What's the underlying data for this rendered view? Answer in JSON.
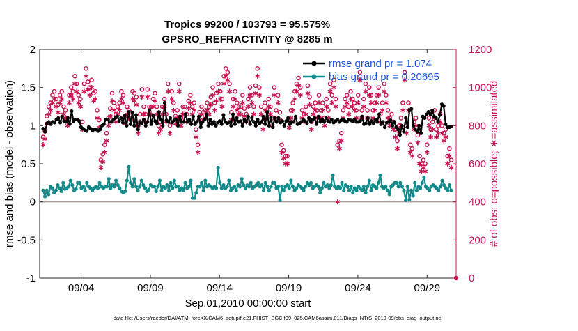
{
  "chart_data": {
    "type": "line",
    "title_line1": "Tropics 99200 / 103793 = 95.575%",
    "title_line2": "GPSRO_REFRACTIVITY @ 8285 m",
    "xlabel": "Sep.01,2010 00:00:00 start",
    "ylabel_left": "rmse and bias (model - observation)",
    "ylabel_right": "# of obs: o=possible; ∗=assimilated",
    "footer": "data file: /Users/raeder/DAI/ATM_forcXX/CAM6_setup/f.e21.FHIST_BGC.f09_025.CAM6assim.011/Diags_NTrS_2010-09/obs_diag_output.nc",
    "xlim": [
      0.5,
      30.6
    ],
    "ylim_left": [
      -1,
      2
    ],
    "ylim_right": [
      0,
      1200
    ],
    "x_ticks": [
      3.5,
      8.5,
      13.5,
      18.5,
      23.5,
      28.5
    ],
    "x_tick_labels": [
      "09/04",
      "09/09",
      "09/14",
      "09/19",
      "09/24",
      "09/29"
    ],
    "y_ticks_left": [
      -1,
      -0.5,
      0,
      0.5,
      1,
      1.5,
      2
    ],
    "y_tick_labels_left": [
      "-1",
      "-0.5",
      "0",
      "0.5",
      "1",
      "1.5",
      "2"
    ],
    "y_ticks_right": [
      0,
      200,
      400,
      600,
      800,
      1000,
      1200
    ],
    "y_tick_labels_right": [
      "0",
      "200",
      "400",
      "600",
      "800",
      "1000",
      "1200"
    ],
    "zero_line": 0,
    "grid": false,
    "legend": {
      "position": "top-right",
      "entries": [
        "rmse grand pr = 1.074",
        "bias grand pr = 0.20695"
      ]
    },
    "colors": {
      "rmse": "#000000",
      "bias": "#138a8a",
      "obs": "#c8154f",
      "zero_line": "#b49a9a",
      "legend_text": "#1a55e0"
    },
    "series": [
      {
        "name": "rmse",
        "axis": "left",
        "values": [
          0.96,
          0.92,
          1.03,
          1.05,
          1.02,
          1.05,
          1.04,
          1.08,
          1.1,
          1.04,
          1.12,
          1.06,
          1.05,
          1.1,
          1.02,
          1.19,
          1.06,
          1.08,
          1.08,
          1.06,
          0.98,
          0.96,
          0.94,
          0.93,
          0.98,
          0.96,
          0.94,
          0.95,
          0.95,
          0.93,
          0.95,
          1.0,
          1.02,
          1.08,
          1.08,
          1.05,
          1.05,
          1.08,
          1.1,
          1.12,
          1.06,
          1.1,
          1.04,
          1.13,
          1.0,
          1.18,
          1.02,
          1.17,
          1.0,
          1.14,
          0.95,
          1.05,
          1.03,
          1.08,
          1.0,
          1.05,
          1.2,
          1.02,
          1.13,
          1.06,
          1.03,
          1.18,
          1.08,
          1.0,
          1.3,
          1.07,
          1.05,
          1.1,
          1.04,
          1.07,
          1.08,
          1.0,
          1.12,
          1.05,
          1.05,
          1.15,
          1.05,
          1.08,
          1.02,
          1.12,
          1.02,
          1.05,
          1.12,
          0.98,
          1.05,
          1.08,
          1.15,
          1.0,
          1.08,
          1.02,
          1.05,
          1.0,
          1.04,
          1.06,
          1.02,
          1.14,
          1.05,
          1.03,
          1.05,
          1.0,
          1.15,
          1.02,
          1.1,
          1.05,
          1.06,
          1.0,
          1.08,
          1.05,
          1.12,
          1.02,
          1.1,
          1.05,
          1.0,
          1.08,
          1.03,
          1.05,
          1.12,
          1.02,
          1.18,
          1.0,
          1.1,
          0.98,
          1.1,
          1.05,
          1.1,
          1.04,
          1.06,
          1.0,
          1.06,
          1.1,
          1.02,
          1.05,
          1.05,
          1.12,
          1.02,
          1.03,
          1.05,
          1.08,
          1.06,
          1.03,
          1.1,
          1.05,
          1.08,
          1.1,
          1.02,
          1.12,
          1.05,
          1.08,
          1.05,
          1.1,
          1.06,
          1.05,
          1.08,
          1.04,
          1.06,
          1.08,
          1.05,
          1.07,
          1.08,
          1.06,
          1.05,
          1.08,
          1.07,
          1.06,
          1.08,
          1.05,
          1.05,
          1.06,
          1.12,
          1.02,
          1.03,
          1.1,
          1.02,
          1.06,
          1.03,
          1.08,
          1.05,
          1.15,
          1.02,
          1.05,
          0.98,
          1.04,
          1.05,
          1.07,
          1.0,
          1.05,
          0.98,
          0.95,
          0.88,
          1.0,
          0.92,
          1.1,
          0.98,
          1.2,
          1.22,
          1.0,
          0.95,
          0.92,
          1.0,
          0.9,
          1.12,
          1.1,
          1.15,
          1.18,
          1.15,
          1.2,
          1.12,
          1.1,
          1.05,
          1.14,
          1.28,
          1.26,
          1.02,
          0.98,
          0.98,
          0.99
        ]
      },
      {
        "name": "bias",
        "axis": "left",
        "values": [
          0.15,
          0.07,
          0.15,
          0.1,
          0.2,
          0.18,
          0.12,
          0.15,
          0.22,
          0.18,
          0.14,
          0.25,
          0.17,
          0.18,
          0.2,
          0.28,
          0.22,
          0.15,
          0.17,
          0.25,
          0.25,
          0.18,
          0.2,
          0.15,
          0.25,
          0.2,
          0.18,
          0.15,
          0.18,
          0.2,
          0.18,
          0.25,
          0.2,
          0.18,
          0.2,
          0.2,
          0.3,
          0.18,
          0.22,
          0.2,
          0.28,
          0.22,
          0.18,
          0.14,
          0.12,
          0.14,
          0.28,
          0.46,
          0.25,
          0.2,
          0.3,
          0.2,
          0.15,
          0.2,
          0.28,
          0.22,
          0.18,
          0.14,
          0.16,
          0.22,
          0.2,
          0.2,
          0.14,
          0.2,
          0.28,
          0.15,
          0.2,
          0.18,
          0.22,
          0.15,
          0.25,
          0.18,
          0.28,
          0.2,
          0.2,
          0.15,
          0.18,
          0.15,
          0.25,
          0.18,
          0.2,
          0.28,
          0.05,
          0.05,
          0.12,
          0.2,
          0.2,
          0.25,
          0.15,
          0.28,
          0.2,
          0.22,
          0.2,
          0.18,
          0.2,
          0.18,
          0.45,
          0.25,
          0.18,
          0.22,
          0.18,
          0.2,
          0.28,
          0.15,
          0.18,
          0.2,
          0.15,
          0.22,
          0.2,
          0.3,
          0.22,
          0.18,
          0.22,
          0.2,
          0.25,
          0.18,
          0.2,
          0.22,
          0.25,
          0.2,
          0.22,
          0.15,
          0.25,
          0.2,
          0.15,
          0.2,
          0.25,
          0.25,
          0.18,
          0.2,
          0.02,
          0.2,
          0.15,
          0.2,
          0.22,
          0.18,
          0.28,
          0.2,
          0.15,
          0.18,
          0.22,
          0.2,
          0.18,
          0.15,
          0.2,
          0.25,
          0.22,
          0.25,
          0.18,
          0.2,
          0.22,
          0.2,
          0.12,
          0.18,
          0.25,
          0.2,
          0.22,
          0.18,
          0.22,
          0.35,
          0.2,
          0.18,
          0.2,
          0.18,
          0.25,
          0.15,
          0.22,
          0.2,
          0.15,
          0.2,
          0.12,
          0.18,
          0.15,
          0.2,
          0.18,
          0.15,
          0.2,
          0.12,
          0.2,
          0.28,
          0.15,
          0.22,
          0.2,
          0.18,
          0.25,
          0.35,
          0.2,
          0.18,
          0.2,
          0.15,
          0.1,
          0.2,
          0.22,
          0.25,
          0.25,
          0.2,
          0.25,
          0.2,
          0.15,
          0.02,
          0.2,
          0.03,
          0.15,
          0.08,
          0.25,
          0.15,
          0.2,
          0.18,
          0.25,
          0.32,
          0.2,
          0.18,
          0.15,
          0.2,
          0.22,
          0.2,
          0.18,
          0.15,
          0.2,
          0.28,
          0.22,
          0.18,
          0.15,
          0.22,
          0.15
        ]
      },
      {
        "name": "obs possible",
        "axis": "right",
        "marker": "o",
        "values": [
          740,
          770,
          850,
          900,
          920,
          960,
          980,
          940,
          910,
          960,
          980,
          900,
          880,
          840,
          960,
          1000,
          980,
          1060,
          1020,
          960,
          940,
          820,
          1020,
          1100,
          1030,
          1000,
          1040,
          970,
          980,
          880,
          830,
          620,
          650,
          700,
          760,
          840,
          890,
          970,
          920,
          860,
          900,
          920,
          980,
          960,
          850,
          900,
          880,
          870,
          980,
          970,
          950,
          800,
          860,
          990,
          900,
          860,
          990,
          900,
          900,
          940,
          970,
          900,
          800,
          820,
          900,
          940,
          860,
          1020,
          800,
          980,
          920,
          850,
          880,
          1020,
          840,
          900,
          900,
          860,
          930,
          960,
          900,
          920,
          780,
          700,
          870,
          900,
          870,
          880,
          920,
          900,
          950,
          1000,
          920,
          970,
          1020,
          980,
          940,
          1060,
          1100,
          1080,
          1020,
          870,
          940,
          980,
          920,
          900,
          900,
          960,
          890,
          860,
          940,
          1000,
          960,
          900,
          1010,
          1100,
          1000,
          900,
          820,
          920,
          880,
          940,
          900,
          840,
          1000,
          880,
          960,
          870,
          700,
          670,
          640,
          640,
          830,
          880,
          920,
          980,
          1020,
          1050,
          1000,
          880,
          860,
          900,
          1010,
          950,
          820,
          900,
          920,
          880,
          960,
          880,
          920,
          840,
          940,
          880,
          1020,
          960,
          1040,
          940,
          700,
          720,
          760,
          880,
          940,
          960,
          900,
          980,
          940,
          920,
          880,
          960,
          1080,
          880,
          940,
          1020,
          880,
          1000,
          960,
          880,
          920,
          960,
          1000,
          860,
          920,
          1020,
          960,
          880,
          840,
          860,
          820,
          780,
          720,
          800,
          840,
          920,
          1080,
          800,
          920,
          700,
          680,
          820,
          840,
          750,
          640,
          600,
          620,
          600,
          700,
          840,
          780,
          820,
          880,
          780,
          800,
          860,
          800,
          760,
          780,
          640,
          680,
          620
        ]
      },
      {
        "name": "obs assimilated",
        "axis": "right",
        "marker": "*",
        "values": [
          700,
          730,
          810,
          860,
          880,
          920,
          940,
          900,
          870,
          920,
          940,
          860,
          840,
          800,
          920,
          960,
          940,
          1020,
          980,
          920,
          900,
          780,
          980,
          1060,
          990,
          960,
          1000,
          930,
          940,
          840,
          790,
          580,
          610,
          660,
          720,
          800,
          850,
          930,
          880,
          820,
          860,
          880,
          940,
          920,
          810,
          860,
          840,
          830,
          940,
          930,
          910,
          760,
          820,
          950,
          860,
          820,
          950,
          860,
          860,
          900,
          930,
          860,
          760,
          780,
          860,
          900,
          820,
          980,
          760,
          940,
          880,
          810,
          840,
          980,
          800,
          860,
          860,
          820,
          890,
          920,
          860,
          880,
          740,
          660,
          830,
          860,
          830,
          840,
          880,
          860,
          910,
          960,
          880,
          930,
          980,
          940,
          900,
          1020,
          1060,
          1040,
          980,
          830,
          900,
          940,
          880,
          860,
          860,
          920,
          850,
          820,
          900,
          960,
          920,
          860,
          970,
          1060,
          960,
          860,
          780,
          880,
          840,
          900,
          860,
          800,
          960,
          840,
          920,
          830,
          660,
          630,
          600,
          600,
          790,
          840,
          880,
          940,
          980,
          1010,
          960,
          840,
          820,
          860,
          970,
          910,
          780,
          860,
          880,
          840,
          920,
          840,
          880,
          800,
          900,
          840,
          980,
          920,
          1000,
          900,
          400,
          680,
          720,
          840,
          900,
          920,
          860,
          940,
          900,
          880,
          840,
          920,
          1040,
          840,
          900,
          980,
          840,
          960,
          920,
          840,
          880,
          920,
          960,
          820,
          880,
          980,
          920,
          840,
          800,
          820,
          780,
          740,
          680,
          760,
          800,
          880,
          1040,
          760,
          880,
          660,
          640,
          780,
          800,
          710,
          600,
          560,
          580,
          560,
          660,
          800,
          740,
          780,
          840,
          740,
          760,
          820,
          760,
          720,
          740,
          600,
          640,
          580
        ]
      }
    ],
    "extra_point": {
      "x": 30.6,
      "y_right": 0
    }
  }
}
